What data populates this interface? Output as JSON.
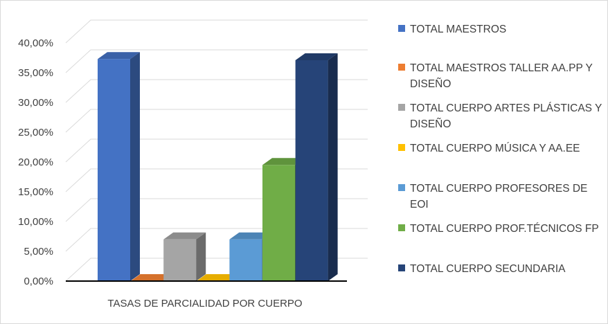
{
  "chart_data": {
    "type": "bar",
    "style": "3d-clustered-column",
    "title": "",
    "xlabel": "",
    "ylabel": "",
    "categories": [
      "TASAS DE PARCIALIDAD POR CUERPO"
    ],
    "ylim": [
      0,
      40
    ],
    "ytick_values": [
      0,
      5,
      10,
      15,
      20,
      25,
      30,
      35,
      40
    ],
    "ytick_labels": [
      "0,00%",
      "5,00%",
      "10,00%",
      "15,00%",
      "20,00%",
      "25,00%",
      "30,00%",
      "35,00%",
      "40,00%"
    ],
    "grid": true,
    "legend_position": "right",
    "series": [
      {
        "name": "TOTAL MAESTROS",
        "values": [
          37.3
        ],
        "color": "#4472c4"
      },
      {
        "name": "TOTAL MAESTROS TALLER AA.PP Y DISEÑO",
        "values": [
          0.0
        ],
        "color": "#ed7d31"
      },
      {
        "name": "TOTAL CUERPO ARTES PLÁSTICAS Y DISEÑO",
        "values": [
          7.0
        ],
        "color": "#a5a5a5"
      },
      {
        "name": "TOTAL CUERPO MÚSICA Y AA.EE",
        "values": [
          0.0
        ],
        "color": "#ffc000"
      },
      {
        "name": "TOTAL CUERPO PROFESORES DE EOI",
        "values": [
          7.0
        ],
        "color": "#5b9bd5"
      },
      {
        "name": "TOTAL CUERPO PROF.TÉCNICOS FP",
        "values": [
          19.5
        ],
        "color": "#70ad47"
      },
      {
        "name": "TOTAL CUERPO SECUNDARIA",
        "values": [
          37.1
        ],
        "color": "#264478"
      }
    ]
  }
}
